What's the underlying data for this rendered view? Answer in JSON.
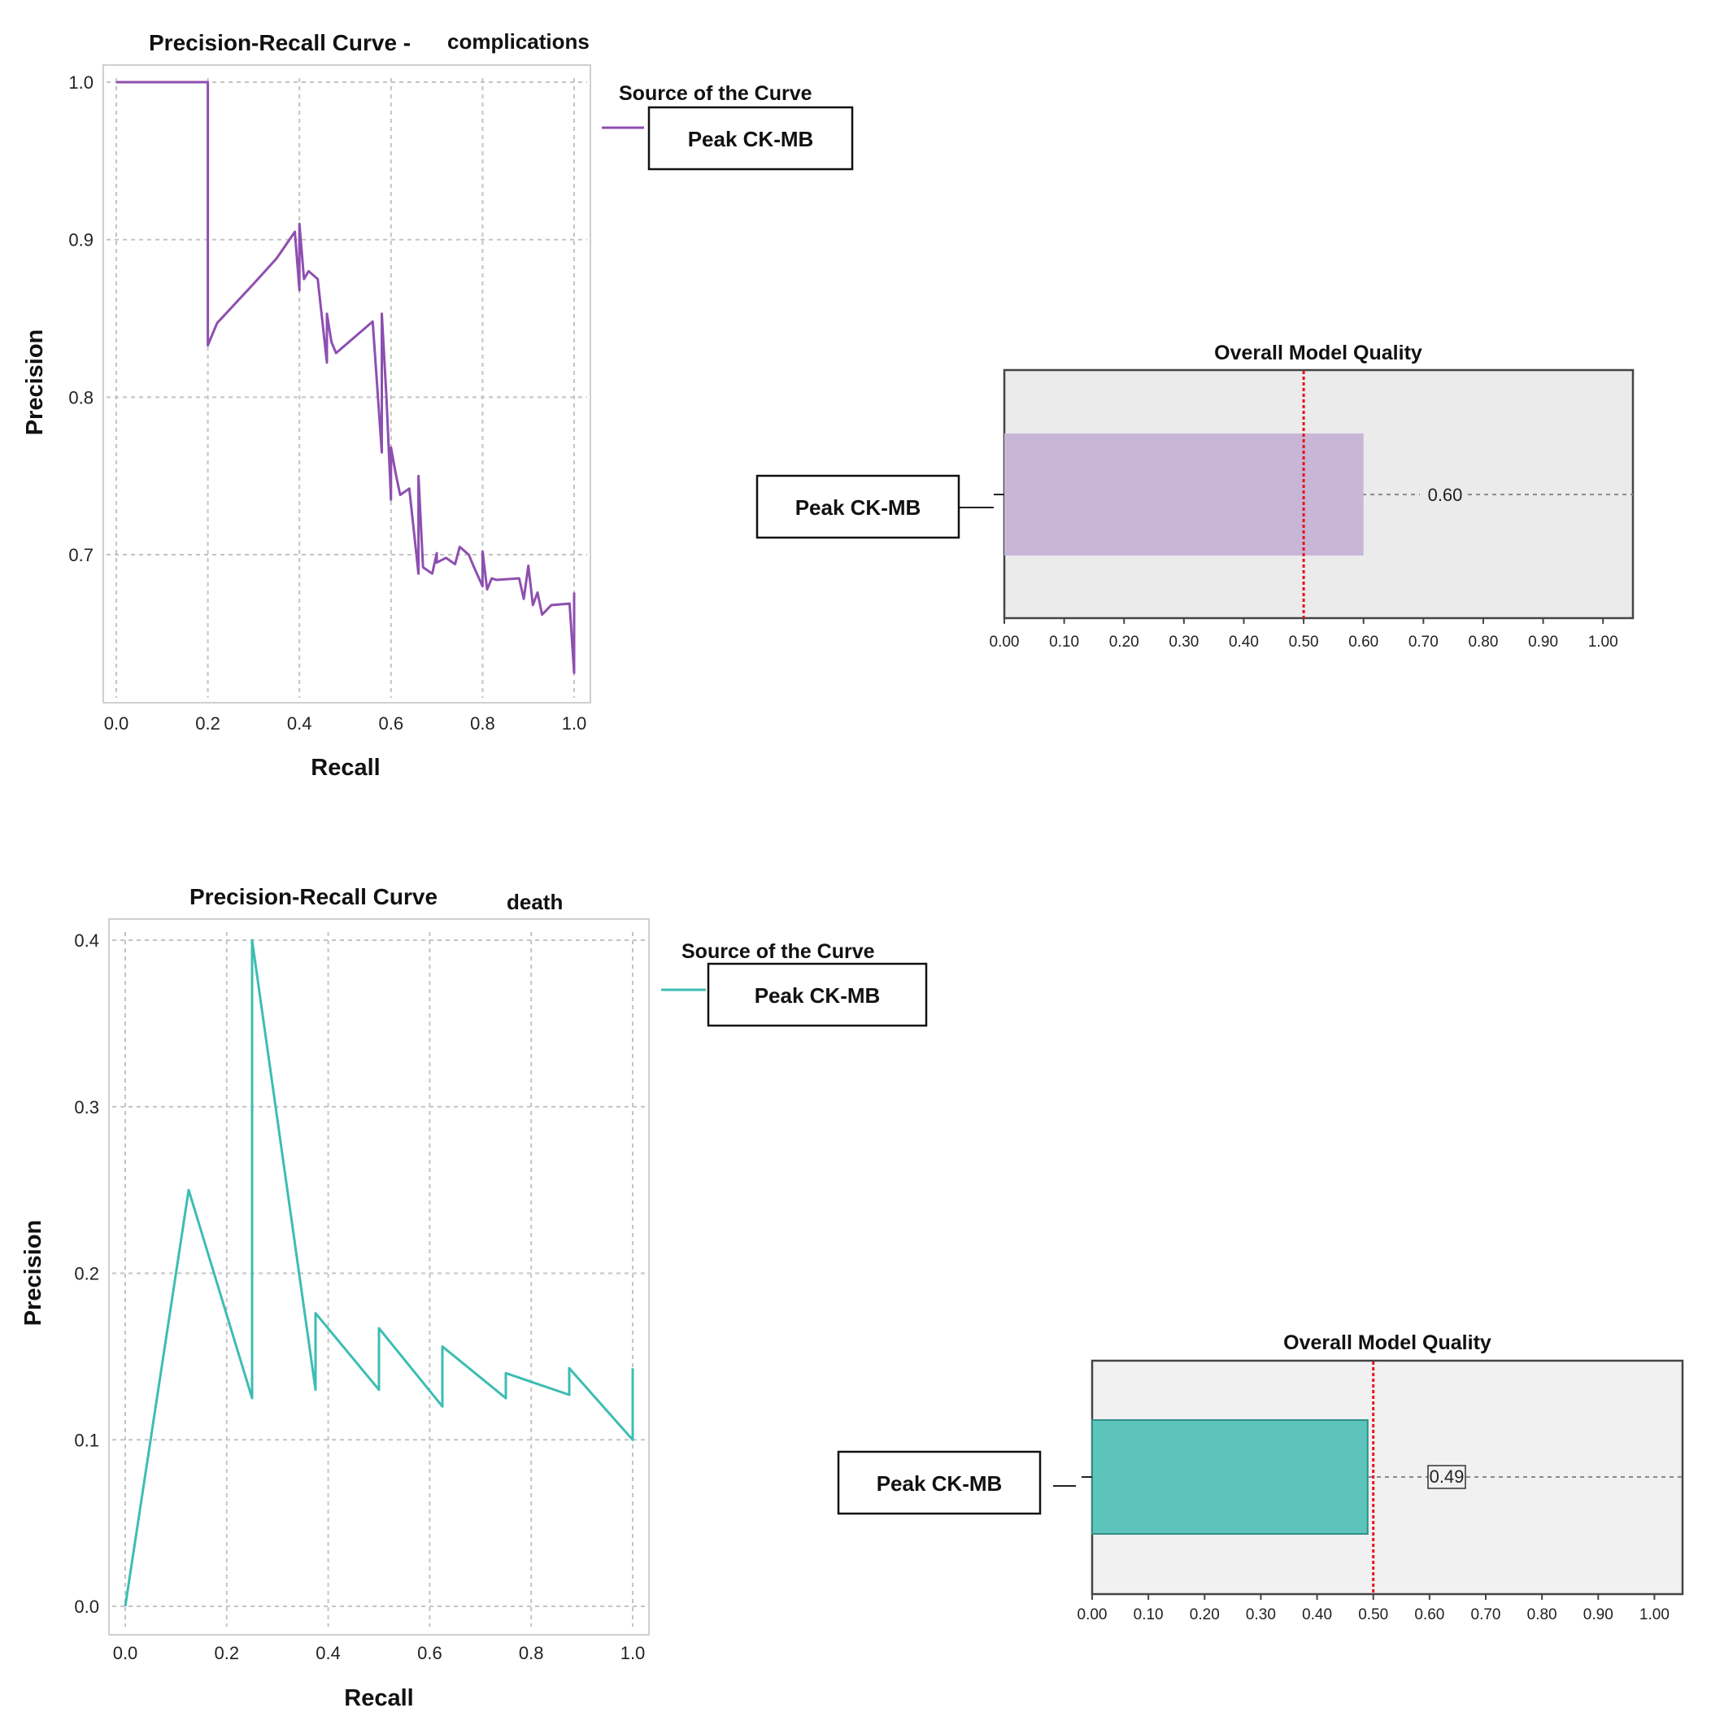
{
  "chart_data": [
    {
      "type": "line",
      "title": "Precision-Recall Curve -",
      "subtitle": "complications",
      "xlabel": "Recall",
      "ylabel": "Precision",
      "xlim": [
        0.0,
        1.0
      ],
      "ylim": [
        0.62,
        1.0
      ],
      "xticks": [
        "0.0",
        "0.2",
        "0.4",
        "0.6",
        "0.8",
        "1.0"
      ],
      "yticks": [
        "0.7",
        "0.8",
        "0.9",
        "1.0"
      ],
      "grid": true,
      "legend_title": "Source of the Curve",
      "series": [
        {
          "name": "Peak CK-MB",
          "color": "#8e4fb0",
          "x": [
            0.0,
            0.18,
            0.2,
            0.2,
            0.2,
            0.2,
            0.22,
            0.3,
            0.35,
            0.39,
            0.4,
            0.4,
            0.41,
            0.42,
            0.44,
            0.46,
            0.46,
            0.47,
            0.48,
            0.56,
            0.58,
            0.58,
            0.59,
            0.6,
            0.6,
            0.61,
            0.62,
            0.64,
            0.66,
            0.66,
            0.67,
            0.69,
            0.7,
            0.7,
            0.72,
            0.74,
            0.75,
            0.77,
            0.78,
            0.8,
            0.8,
            0.81,
            0.82,
            0.83,
            0.88,
            0.89,
            0.9,
            0.91,
            0.92,
            0.93,
            0.95,
            0.99,
            1.0,
            1.0
          ],
          "y": [
            1.0,
            1.0,
            1.0,
            0.98,
            0.94,
            0.833,
            0.847,
            0.872,
            0.888,
            0.905,
            0.868,
            0.91,
            0.875,
            0.88,
            0.875,
            0.822,
            0.853,
            0.835,
            0.828,
            0.848,
            0.765,
            0.853,
            0.8,
            0.735,
            0.768,
            0.752,
            0.738,
            0.742,
            0.688,
            0.75,
            0.692,
            0.688,
            0.701,
            0.695,
            0.698,
            0.694,
            0.705,
            0.7,
            0.693,
            0.68,
            0.702,
            0.678,
            0.685,
            0.684,
            0.685,
            0.672,
            0.693,
            0.668,
            0.676,
            0.662,
            0.668,
            0.669,
            0.625,
            0.676
          ]
        }
      ]
    },
    {
      "type": "bar",
      "orientation": "horizontal",
      "title": "Overall Model Quality",
      "categories": [
        "Peak CK-MB"
      ],
      "values": [
        0.6
      ],
      "value_label": "0.60",
      "reference_line": 0.5,
      "xlim": [
        0.0,
        1.05
      ],
      "xticks": [
        "0.00",
        "0.10",
        "0.20",
        "0.30",
        "0.40",
        "0.50",
        "0.60",
        "0.70",
        "0.80",
        "0.90",
        "1.00"
      ],
      "bar_color": "#c7b6d6",
      "reference_color": "#e8141c"
    },
    {
      "type": "line",
      "title": "Precision-Recall Curve",
      "subtitle": "death",
      "xlabel": "Recall",
      "ylabel": "Precision",
      "xlim": [
        0.0,
        1.0
      ],
      "ylim": [
        0.0,
        0.4
      ],
      "xticks": [
        "0.0",
        "0.2",
        "0.4",
        "0.6",
        "0.8",
        "1.0"
      ],
      "yticks": [
        "0.0",
        "0.1",
        "0.2",
        "0.3",
        "0.4"
      ],
      "grid": true,
      "legend_title": "Source of the Curve",
      "series": [
        {
          "name": "Peak CK-MB",
          "color": "#3dbdb2",
          "x": [
            0.0,
            0.125,
            0.25,
            0.25,
            0.375,
            0.375,
            0.5,
            0.5,
            0.625,
            0.625,
            0.75,
            0.75,
            0.875,
            0.875,
            1.0,
            1.0
          ],
          "y": [
            0.0,
            0.25,
            0.125,
            0.4,
            0.13,
            0.176,
            0.13,
            0.167,
            0.12,
            0.156,
            0.125,
            0.14,
            0.127,
            0.143,
            0.1,
            0.143
          ]
        }
      ]
    },
    {
      "type": "bar",
      "orientation": "horizontal",
      "title": "Overall Model Quality",
      "categories": [
        "Peak CK-MB"
      ],
      "values": [
        0.49
      ],
      "value_label": "0.49",
      "reference_line": 0.5,
      "xlim": [
        0.0,
        1.05
      ],
      "xticks": [
        "0.00",
        "0.10",
        "0.20",
        "0.30",
        "0.40",
        "0.50",
        "0.60",
        "0.70",
        "0.80",
        "0.90",
        "1.00"
      ],
      "bar_color": "#5cc4bb",
      "reference_color": "#e8141c"
    }
  ]
}
